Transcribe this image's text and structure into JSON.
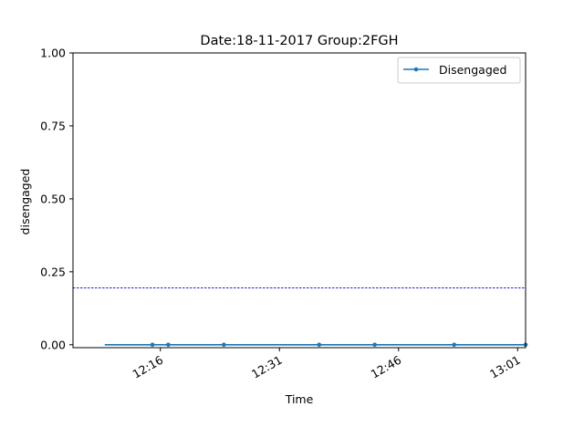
{
  "chart_data": {
    "type": "line",
    "title": "Date:18-11-2017  Group:2FGH",
    "xlabel": "Time",
    "ylabel": "disengaged",
    "xlim": [
      "12:05",
      "13:02"
    ],
    "ylim": [
      -0.01,
      1.0
    ],
    "x_ticks": [
      "12:16",
      "12:31",
      "12:46",
      "13:01"
    ],
    "y_ticks": [
      "0.00",
      "0.25",
      "0.50",
      "0.75",
      "1.00"
    ],
    "y_tick_values": [
      0.0,
      0.25,
      0.5,
      0.75,
      1.0
    ],
    "series": [
      {
        "name": "Disengaged",
        "color": "#1f77b4",
        "marker": "circle",
        "x": [
          "12:09",
          "12:15",
          "12:17",
          "12:24",
          "12:36",
          "12:43",
          "12:53",
          "13:02"
        ],
        "y": [
          0,
          0,
          0,
          0,
          0,
          0,
          0,
          0
        ],
        "marked": [
          false,
          true,
          true,
          true,
          true,
          true,
          true,
          true
        ]
      }
    ],
    "reference_line": {
      "y": 0.195,
      "color": "#0000cc",
      "style": "dashed"
    },
    "legend": {
      "position": "top-right"
    },
    "grid": false
  }
}
